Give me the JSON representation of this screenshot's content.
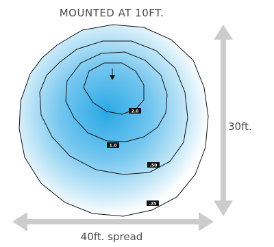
{
  "title": "MOUNTED AT 10FT.",
  "dimensions": {
    "height_label": "30ft.",
    "width_label": "40ft. spread"
  },
  "contour_labels": [
    "2.0",
    "1.0",
    ".50",
    ".25"
  ],
  "colors": {
    "glow_center": "#29a9e6",
    "glow_edge": "#ffffff",
    "contour_line": "#111111",
    "arrow": "#cccccc",
    "label_box": "#111111",
    "text": "#4a4a4a"
  }
}
